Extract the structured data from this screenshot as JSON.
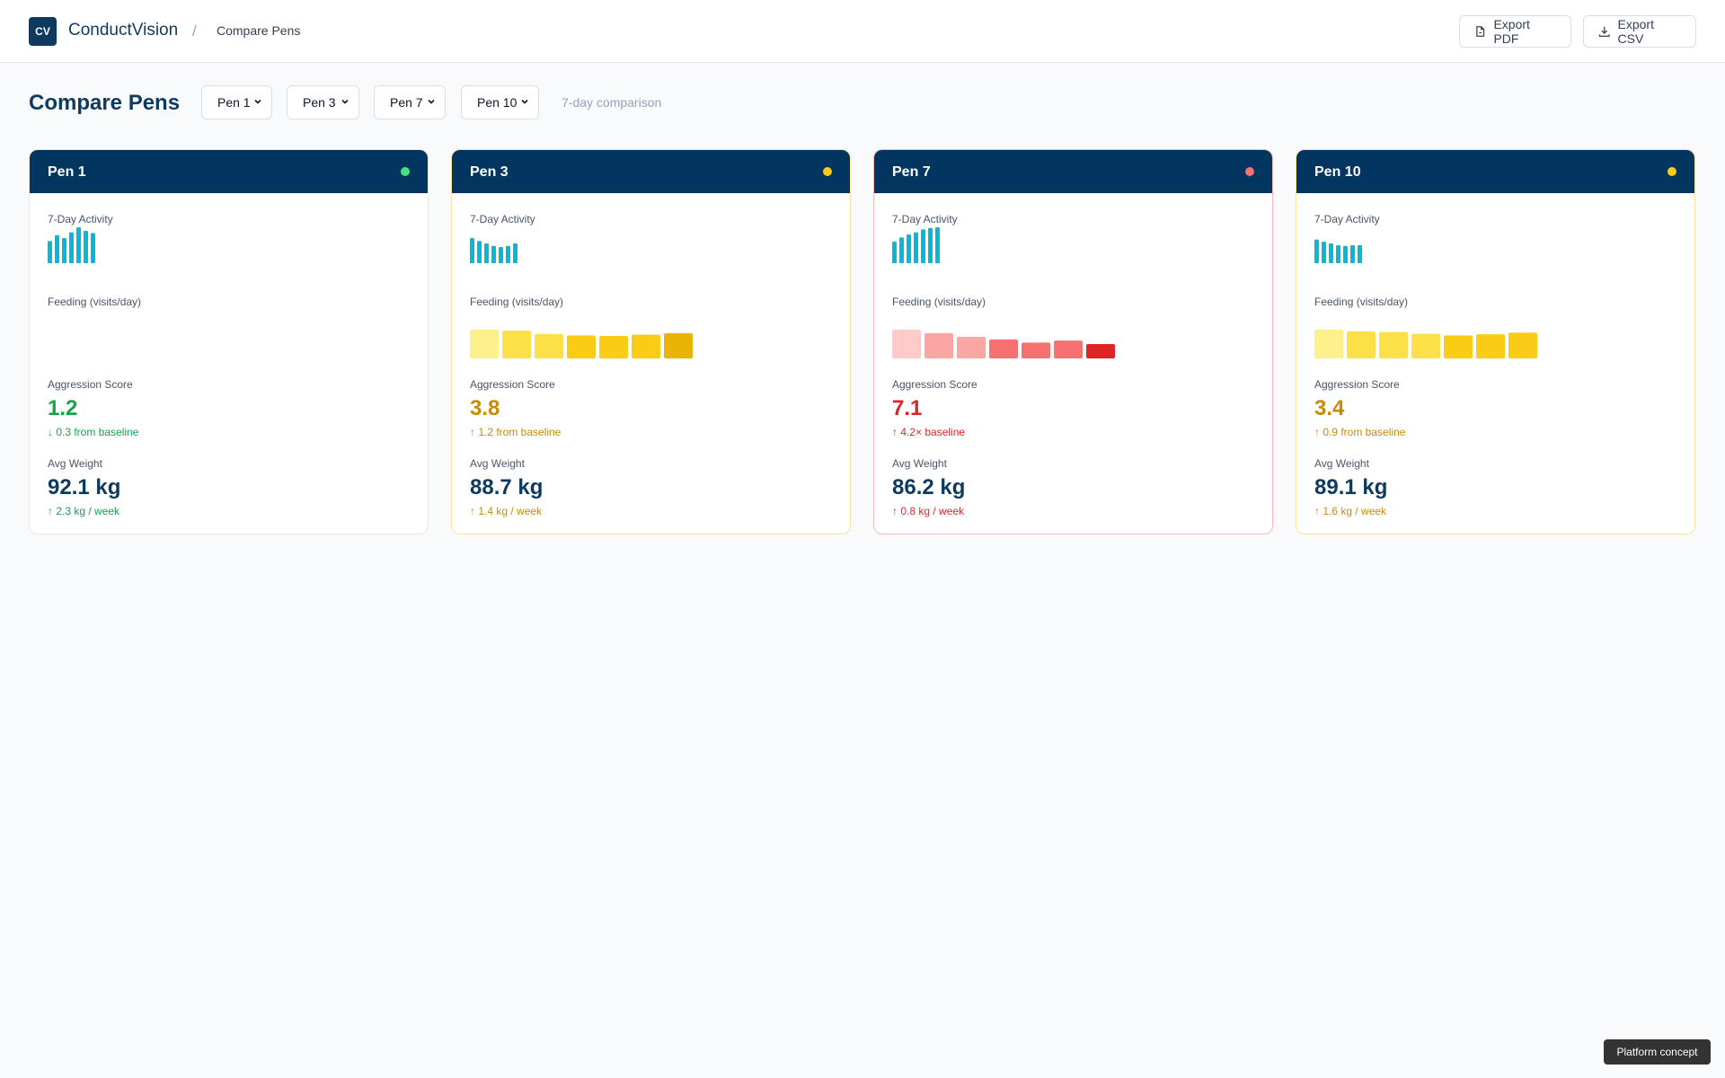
{
  "header": {
    "logo_text": "CV",
    "app_name": "ConductVision",
    "breadcrumb_separator": "/",
    "breadcrumb": "Compare Pens",
    "export_pdf_label": "Export PDF",
    "export_csv_label": "Export CSV"
  },
  "toolbar": {
    "page_title": "Compare Pens",
    "selects": [
      "Pen 1",
      "Pen 3",
      "Pen 7",
      "Pen 10"
    ],
    "hint": "7-day comparison"
  },
  "labels": {
    "activity": "7-Day Activity",
    "feeding": "Feeding (visits/day)",
    "aggression": "Aggression Score",
    "weight": "Avg Weight"
  },
  "pens": [
    {
      "title": "Pen 1",
      "status_color": "#4ade80",
      "activity": [
        0.62,
        0.78,
        0.7,
        0.86,
        1.0,
        0.9,
        0.84
      ],
      "feeding": [],
      "feeding_colors": [],
      "aggression": "1.2",
      "aggression_color": "#16a34a",
      "aggression_delta": "↓ 0.3 from baseline",
      "weight": "92.1 kg",
      "weight_delta": "↑ 2.3 kg / week",
      "weight_delta_color": "#16a34a"
    },
    {
      "title": "Pen 3",
      "status_color": "#facc15",
      "activity": [
        0.7,
        0.62,
        0.55,
        0.48,
        0.45,
        0.48,
        0.55
      ],
      "feeding": [
        1.0,
        0.97,
        0.85,
        0.8,
        0.78,
        0.83,
        0.88
      ],
      "feeding_colors": [
        "#fef08a",
        "#fde047",
        "#fde047",
        "#facc15",
        "#facc15",
        "#facc15",
        "#eab308"
      ],
      "aggression": "3.8",
      "aggression_color": "#ca8a04",
      "aggression_delta": "↑ 1.2 from baseline",
      "weight": "88.7 kg",
      "weight_delta": "↑ 1.4 kg / week",
      "weight_delta_color": "#ca8a04"
    },
    {
      "title": "Pen 7",
      "status_color": "#f87171",
      "activity": [
        0.6,
        0.72,
        0.8,
        0.86,
        0.94,
        0.98,
        1.0
      ],
      "feeding": [
        1.0,
        0.88,
        0.75,
        0.66,
        0.55,
        0.62,
        0.5
      ],
      "feeding_colors": [
        "#fecaca",
        "#fca5a5",
        "#fca5a5",
        "#f87171",
        "#f87171",
        "#f87171",
        "#dc2626"
      ],
      "aggression": "7.1",
      "aggression_color": "#dc2626",
      "aggression_delta": "↑ 4.2× baseline",
      "weight": "86.2 kg",
      "weight_delta": "↑ 0.8 kg / week",
      "weight_delta_color": "#dc2626"
    },
    {
      "title": "Pen 10",
      "status_color": "#facc15",
      "activity": [
        0.66,
        0.6,
        0.55,
        0.5,
        0.48,
        0.5,
        0.5
      ],
      "feeding": [
        1.0,
        0.94,
        0.92,
        0.86,
        0.8,
        0.84,
        0.9
      ],
      "feeding_colors": [
        "#fef08a",
        "#fde047",
        "#fde047",
        "#fde047",
        "#facc15",
        "#facc15",
        "#facc15"
      ],
      "aggression": "3.4",
      "aggression_color": "#ca8a04",
      "aggression_delta": "↑ 0.9 from baseline",
      "weight": "89.1 kg",
      "weight_delta": "↑ 1.6 kg / week",
      "weight_delta_color": "#ca8a04"
    }
  ],
  "colors": {
    "activity_bar": "#0ab8d4",
    "header_bg": "#023660"
  },
  "footer_badge": "Platform concept"
}
